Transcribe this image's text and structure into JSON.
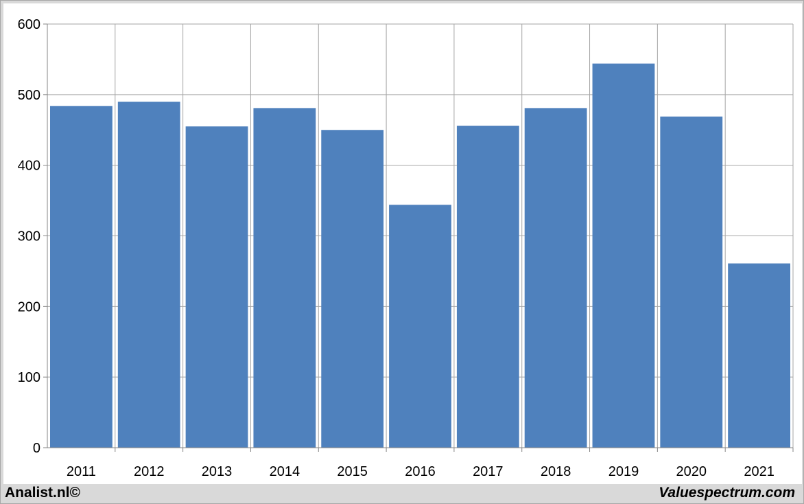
{
  "colors": {
    "bar": "#4f81bd",
    "grid": "#a6a6a6",
    "axis": "#868686",
    "background": "#ffffff",
    "frame": "#d9d9d9"
  },
  "footer": {
    "left": "Analist.nl©",
    "right": "Valuespectrum.com"
  },
  "chart_data": {
    "type": "bar",
    "categories": [
      "2011",
      "2012",
      "2013",
      "2014",
      "2015",
      "2016",
      "2017",
      "2018",
      "2019",
      "2020",
      "2021"
    ],
    "values": [
      484,
      490,
      455,
      481,
      450,
      344,
      456,
      481,
      544,
      469,
      261
    ],
    "title": "",
    "xlabel": "",
    "ylabel": "",
    "ylim": [
      0,
      600
    ],
    "yticks": [
      0,
      100,
      200,
      300,
      400,
      500,
      600
    ],
    "grid": true,
    "legend": "none"
  }
}
